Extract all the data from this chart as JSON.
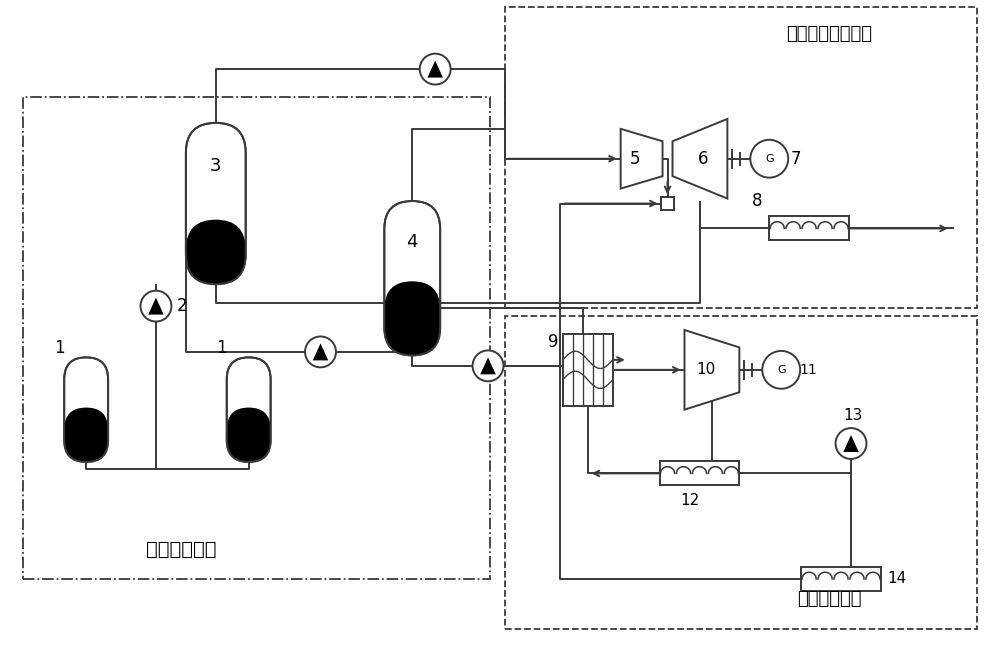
{
  "bg_color": "#ffffff",
  "line_color": "#3a3a3a",
  "label_htc": "水热碳化系统",
  "label_flash": "闪譒蒸汽发电系统",
  "label_orc": "有机朗芦系统"
}
